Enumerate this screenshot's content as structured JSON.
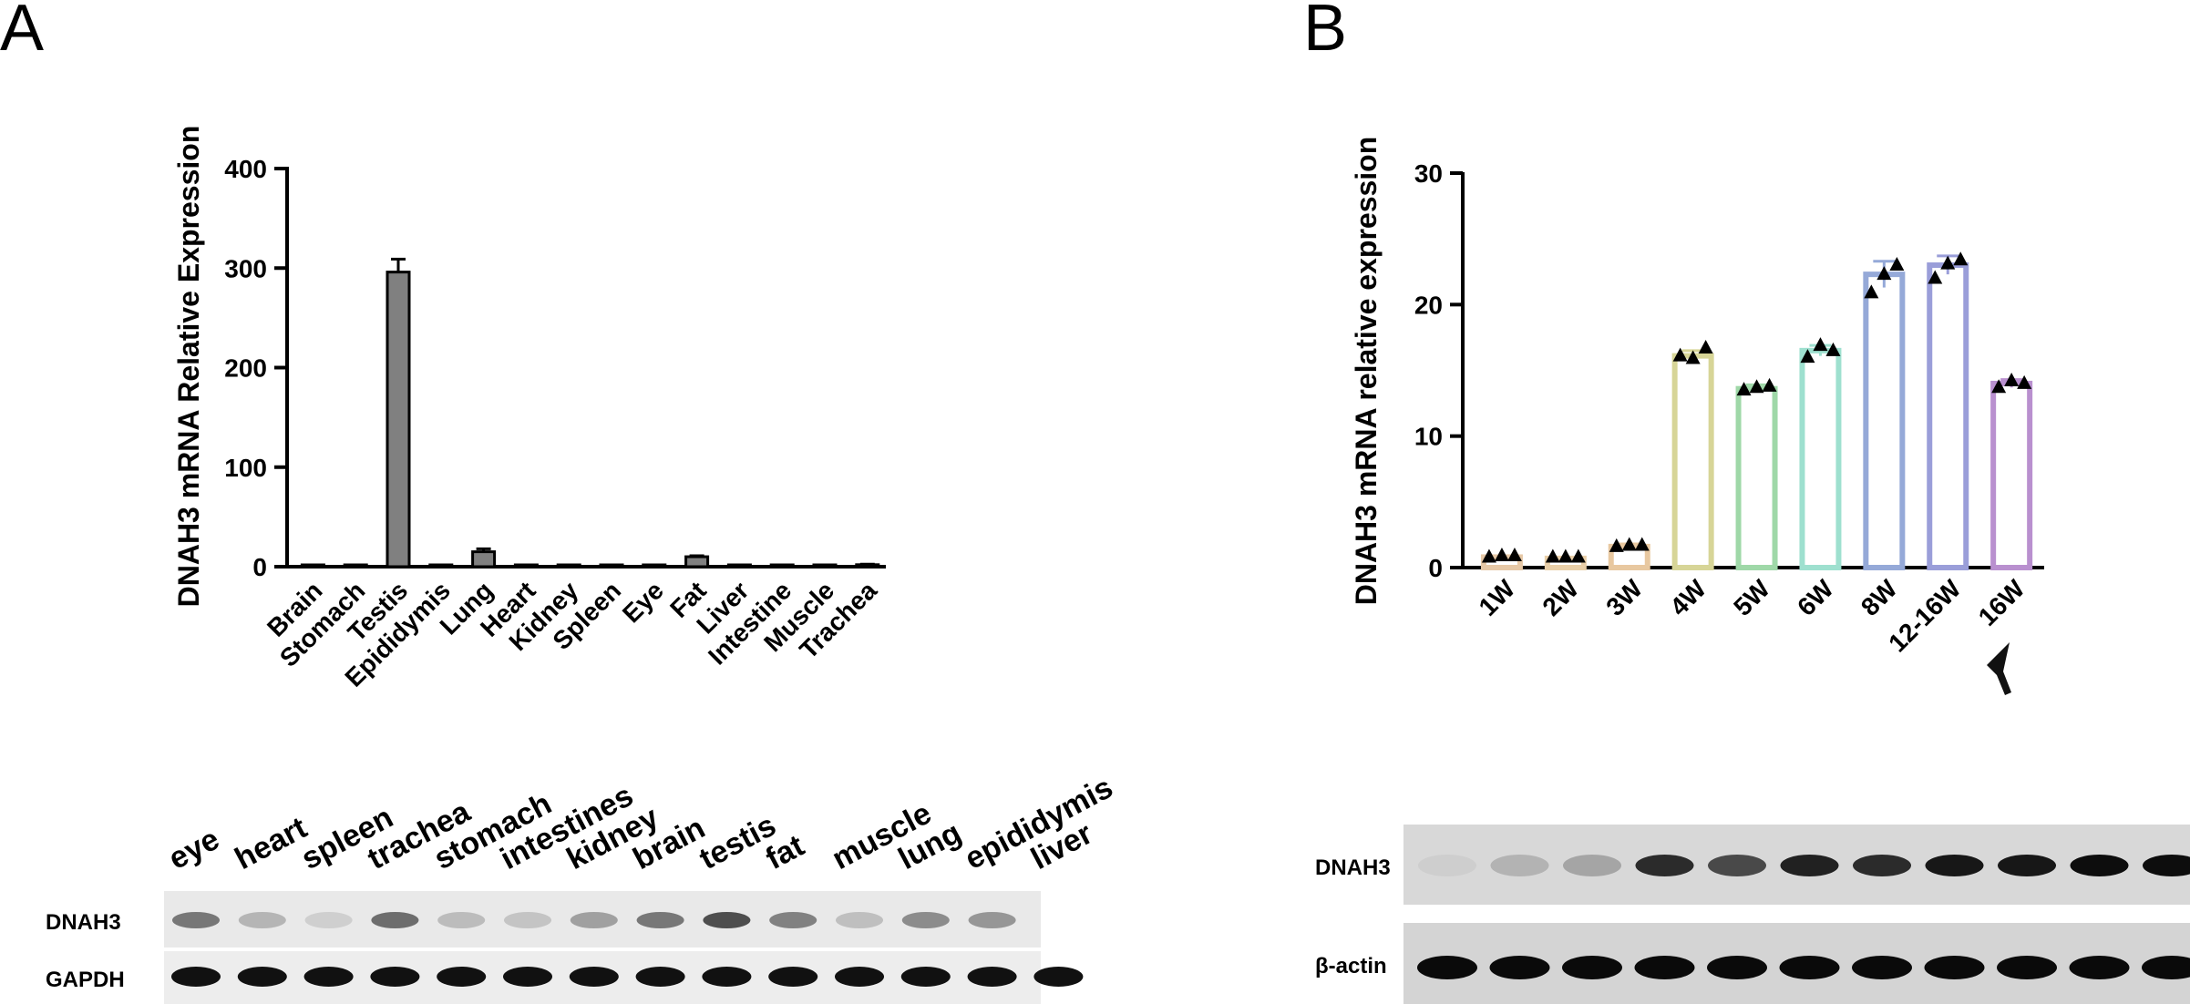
{
  "figure": {
    "panel_a_letter": "A",
    "panel_b_letter": "B"
  },
  "chart_data": [
    {
      "type": "bar",
      "panel": "A",
      "categories": [
        "Brain",
        "Stomach",
        "Testis",
        "Epididymis",
        "Lung",
        "Heart",
        "Kidney",
        "Spleen",
        "Eye",
        "Fat",
        "Liver",
        "Intestine",
        "Muscle",
        "Trachea"
      ],
      "values": [
        0.5,
        0.5,
        296,
        1,
        15,
        0.5,
        0.5,
        0.5,
        0.5,
        10,
        0.5,
        0.5,
        0.5,
        2
      ],
      "errors": [
        0,
        0,
        13,
        0,
        3,
        0,
        0,
        0,
        0,
        1,
        0,
        0,
        0,
        0.5
      ],
      "title": "",
      "xlabel": "",
      "ylabel": "DNAH3 mRNA Relative Expression",
      "ylim": [
        0,
        400
      ],
      "yticks": [
        0,
        100,
        200,
        300,
        400
      ],
      "grid": false,
      "bar_color": "#808080"
    },
    {
      "type": "bar",
      "panel": "B",
      "categories": [
        "1W",
        "2W",
        "3W",
        "4W",
        "5W",
        "6W",
        "8W",
        "12-16W",
        "16W"
      ],
      "values": [
        0.8,
        0.7,
        1.6,
        16.1,
        13.6,
        16.5,
        22.3,
        23.0,
        14.0
      ],
      "errors": [
        0.1,
        0.1,
        0.2,
        0.4,
        0.3,
        0.4,
        1.0,
        0.7,
        0.3
      ],
      "points": [
        [
          0.8,
          0.9,
          0.9
        ],
        [
          0.8,
          0.8,
          0.8
        ],
        [
          1.6,
          1.7,
          1.7
        ],
        [
          16.1,
          15.9,
          16.7
        ],
        [
          13.5,
          13.7,
          13.8
        ],
        [
          16.0,
          16.9,
          16.5
        ],
        [
          20.9,
          22.3,
          23.0
        ],
        [
          22.0,
          23.1,
          23.4
        ],
        [
          13.7,
          14.2,
          14.0
        ]
      ],
      "colors": [
        "#e6c8a6",
        "#e9cfa8",
        "#e8c8a0",
        "#d7d597",
        "#9fd8a8",
        "#9ee0cf",
        "#95a9d8",
        "#9a9ed9",
        "#b990cf"
      ],
      "title": "",
      "xlabel": "",
      "ylabel": "DNAH3 mRNA relative expression",
      "ylim": [
        0,
        30
      ],
      "yticks": [
        0,
        10,
        20,
        30
      ],
      "grid": false
    }
  ],
  "blot_a": {
    "lanes": [
      "eye",
      "heart",
      "spleen",
      "trachea",
      "stomach",
      "intestines",
      "kidney",
      "brain",
      "testis",
      "fat",
      "muscle",
      "lung",
      "epididymis",
      "liver"
    ],
    "rows": [
      "DNAH3",
      "GAPDH"
    ],
    "dnah3_intensity": [
      0.55,
      0.25,
      0.12,
      0.6,
      0.22,
      0.18,
      0.35,
      0.55,
      0.75,
      0.5,
      0.2,
      0.45,
      0.4,
      0.0
    ],
    "gapdh_intensity": [
      1,
      1,
      1,
      1,
      1,
      1,
      1,
      1,
      1,
      1,
      1,
      1,
      1,
      1
    ]
  },
  "blot_b": {
    "rows": [
      "DNAH3",
      "β-actin"
    ],
    "dnah3_intensity": [
      0.05,
      0.18,
      0.25,
      0.85,
      0.7,
      0.9,
      0.85,
      0.95,
      0.95,
      1.0,
      1.0
    ],
    "actin_intensity": [
      1,
      1,
      1,
      1,
      1,
      1,
      1,
      1,
      1,
      1,
      1
    ]
  }
}
